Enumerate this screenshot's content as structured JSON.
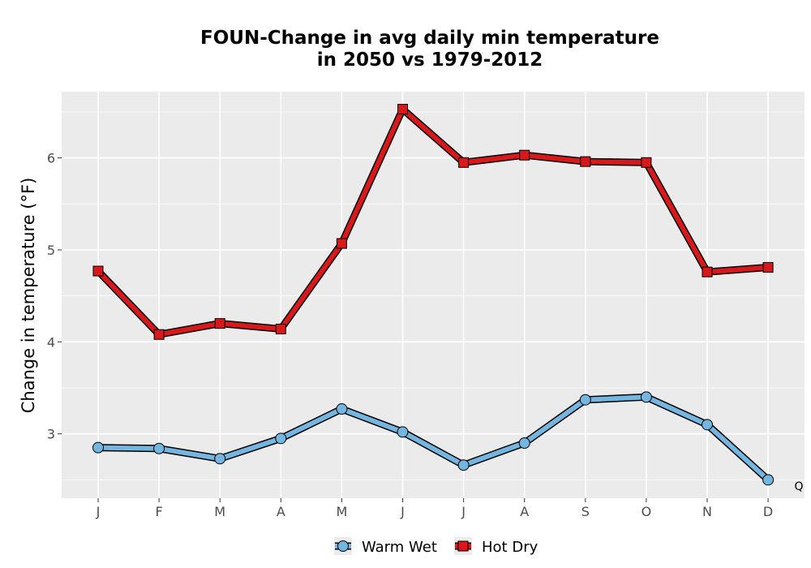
{
  "chart_data": {
    "type": "line",
    "title_line1": "FOUN-Change in avg daily min temperature",
    "title_line2": "in 2050 vs 1979-2012",
    "xlabel": "",
    "ylabel": "Change in temperature (°F)",
    "categories": [
      "J",
      "F",
      "M",
      "A",
      "M",
      "J",
      "J",
      "A",
      "S",
      "O",
      "N",
      "D"
    ],
    "ylim": [
      2.3,
      6.72
    ],
    "yticks": [
      3,
      4,
      5,
      6
    ],
    "grid": true,
    "legend_position": "bottom",
    "series": [
      {
        "name": "Warm Wet",
        "color": "#74b6e0",
        "marker": "circle",
        "values": [
          2.85,
          2.84,
          2.73,
          2.95,
          3.27,
          3.02,
          2.66,
          2.9,
          3.37,
          3.4,
          3.1,
          2.5
        ]
      },
      {
        "name": "Hot Dry",
        "color": "#d7191c",
        "marker": "square",
        "values": [
          4.77,
          4.08,
          4.2,
          4.14,
          5.07,
          6.53,
          5.95,
          6.03,
          5.96,
          5.95,
          4.76,
          4.81
        ]
      }
    ],
    "annotation": "Q"
  }
}
